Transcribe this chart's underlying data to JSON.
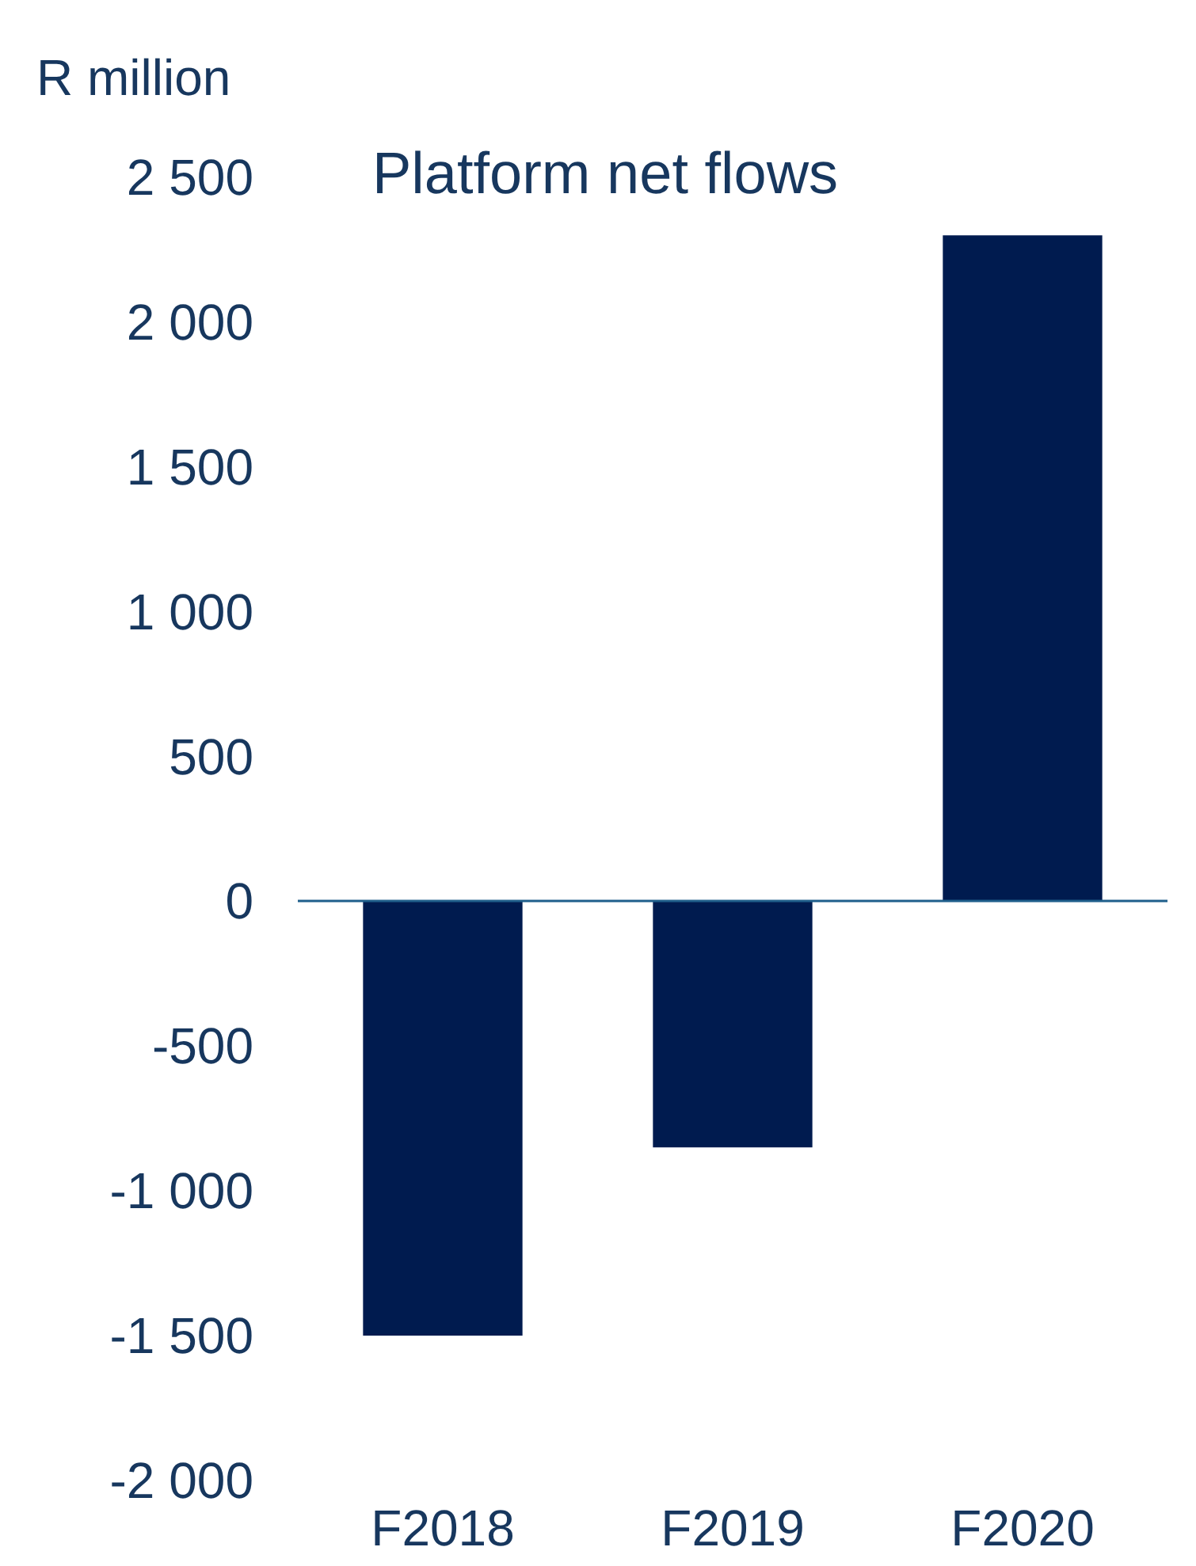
{
  "chart_data": {
    "type": "bar",
    "title": "Platform net flows",
    "ylabel": "R million",
    "categories": [
      "F2018",
      "F2019",
      "F2020"
    ],
    "values": [
      -1500,
      -850,
      2300
    ],
    "color": "#001b4f",
    "ylim": [
      -2000,
      2500
    ],
    "yticks": [
      {
        "value": -2000,
        "label": "-2 000"
      },
      {
        "value": -1500,
        "label": "-1 500"
      },
      {
        "value": -1000,
        "label": "-1 000"
      },
      -500,
      0,
      500,
      {
        "value": 1000,
        "label": "1 000"
      },
      {
        "value": 1500,
        "label": "1 500"
      },
      {
        "value": 2000,
        "label": "2 000"
      },
      {
        "value": 2500,
        "label": "2 500"
      }
    ],
    "grid": false,
    "ref_lines": [
      {
        "axis": "y",
        "value": 0,
        "color": "#1f5f8b"
      }
    ]
  }
}
